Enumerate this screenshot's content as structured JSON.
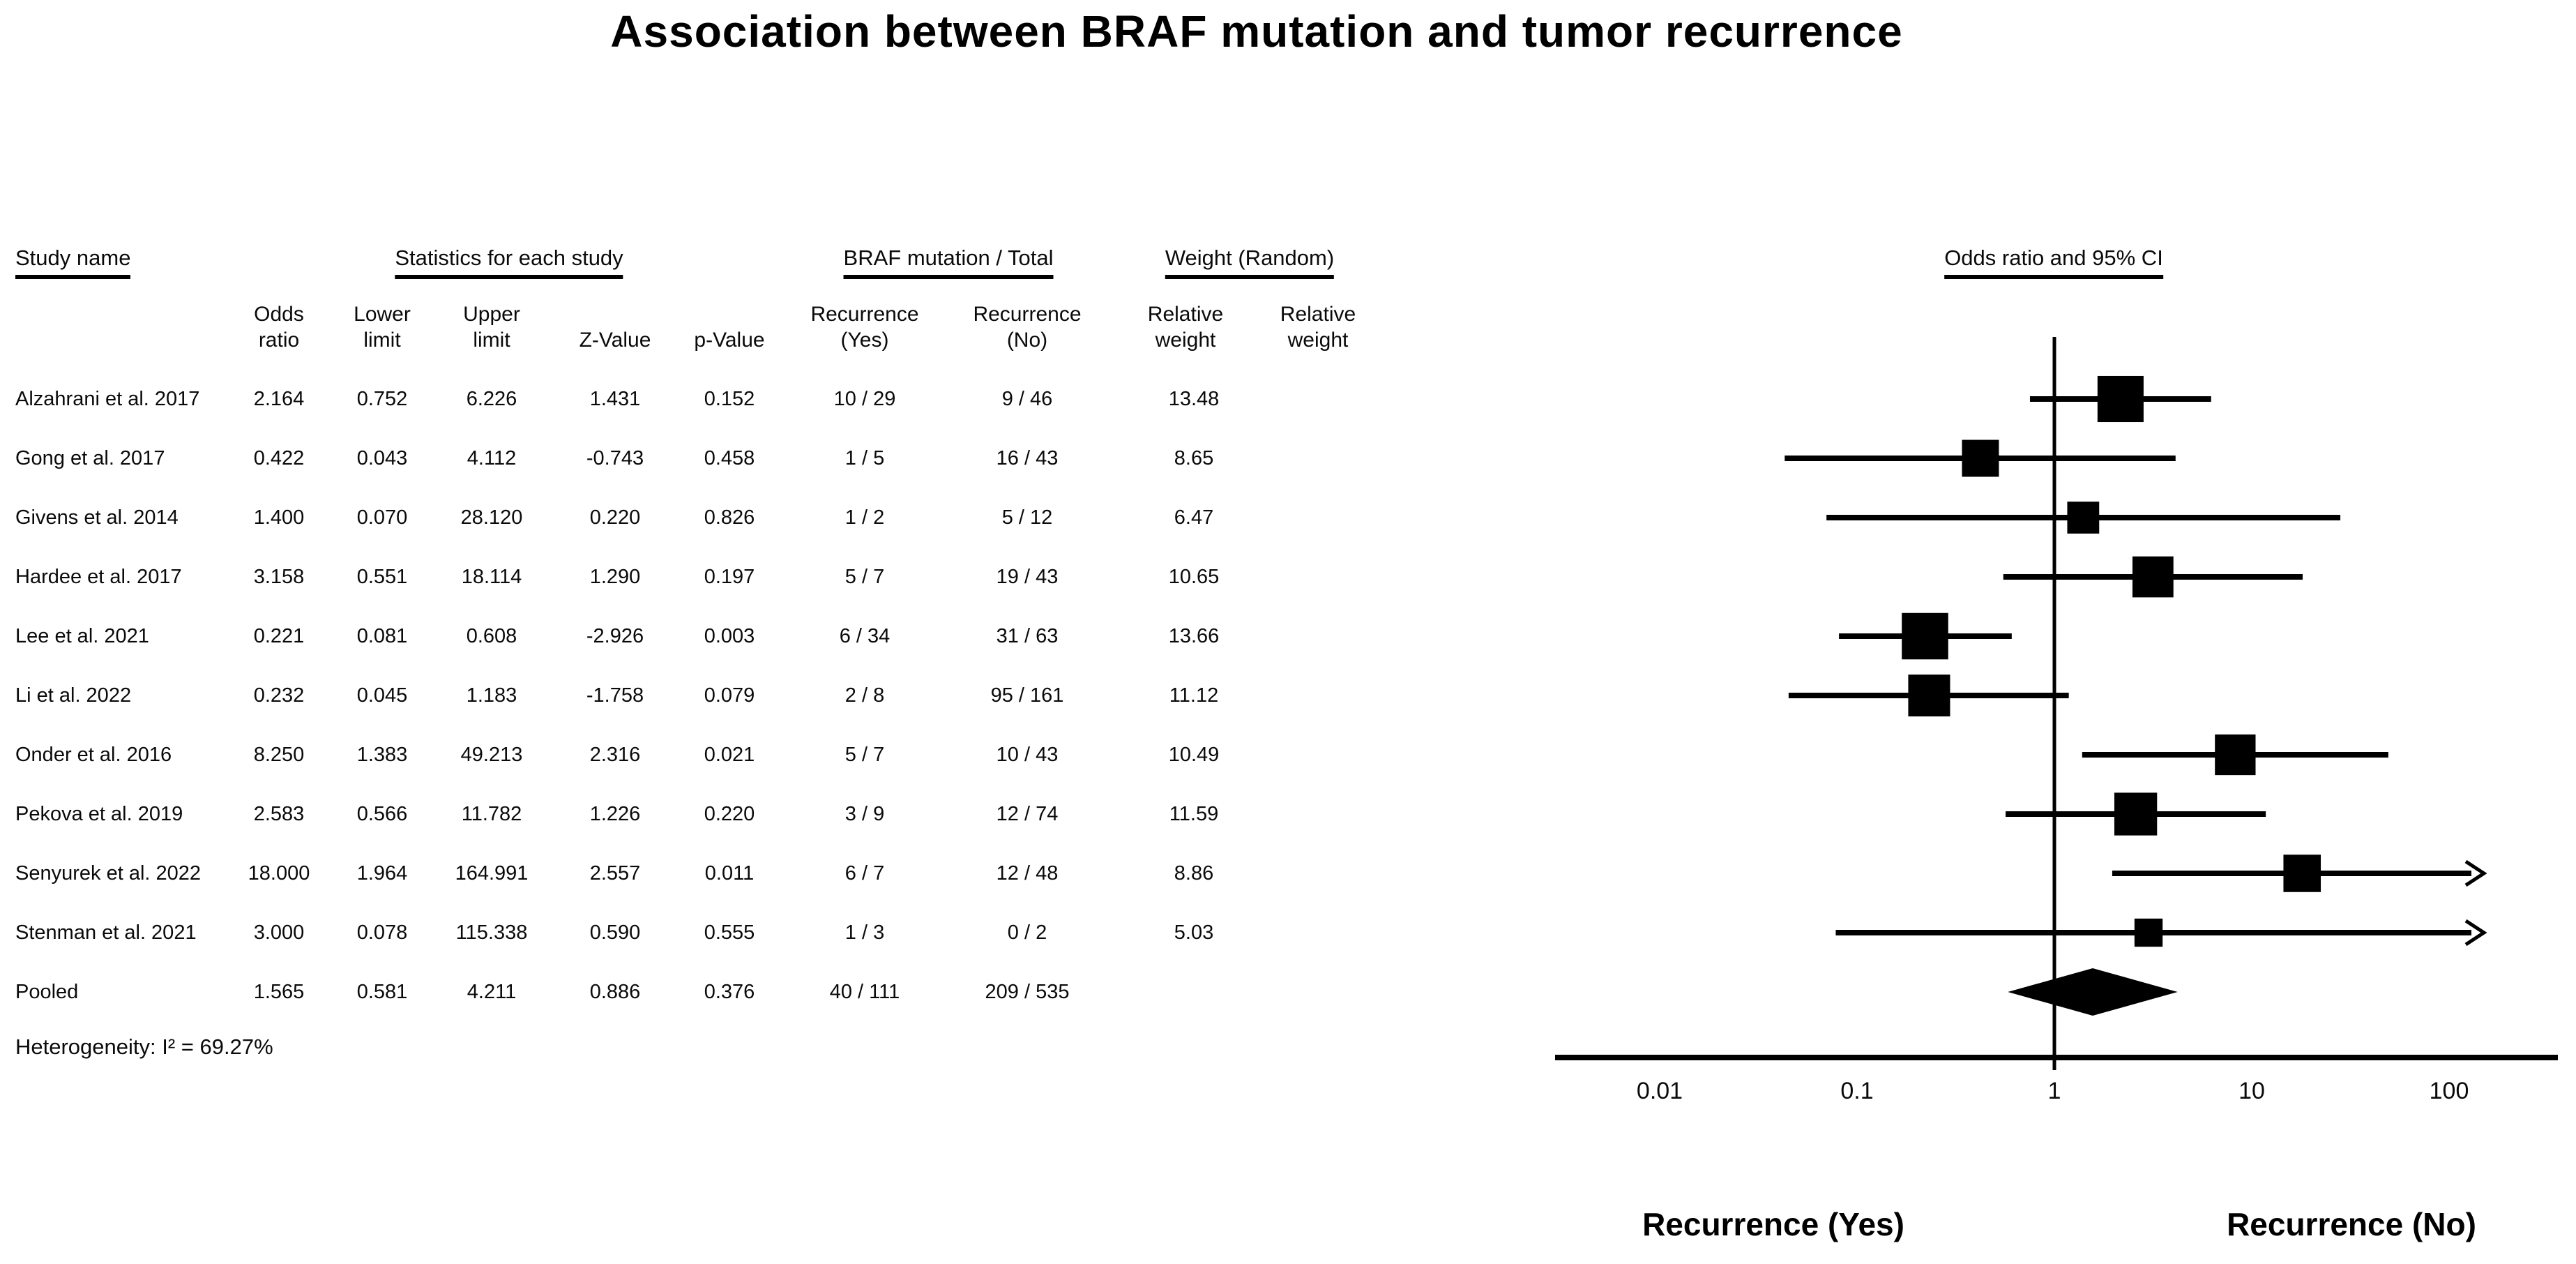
{
  "figure": {
    "title": "Association between BRAF mutation and tumor recurrence",
    "heterogeneity": "Heterogeneity: I² = 69.27%"
  },
  "table": {
    "group_headers": {
      "study": "Study name",
      "stats": "Statistics for each study",
      "braf": "BRAF mutation / Total",
      "weight": "Weight (Random)",
      "plot": "Odds ratio and 95% CI"
    },
    "sub_headers": {
      "odds": "Odds\nratio",
      "lower": "Lower\nlimit",
      "upper": "Upper\nlimit",
      "z": "Z-Value",
      "p": "p-Value",
      "rec_yes": "Recurrence\n(Yes)",
      "rec_no": "Recurrence\n(No)",
      "rel_weight1": "Relative\nweight",
      "rel_weight2": "Relative\nweight"
    },
    "rows": [
      {
        "name": "Alzahrani et al. 2017",
        "or": "2.164",
        "lower": "0.752",
        "upper": "6.226",
        "z": "1.431",
        "p": "0.152",
        "rec_yes": "10 / 29",
        "rec_no": "9 / 46",
        "weight": "13.48"
      },
      {
        "name": "Gong et al. 2017",
        "or": "0.422",
        "lower": "0.043",
        "upper": "4.112",
        "z": "-0.743",
        "p": "0.458",
        "rec_yes": "1 / 5",
        "rec_no": "16 / 43",
        "weight": "8.65"
      },
      {
        "name": "Givens et al. 2014",
        "or": "1.400",
        "lower": "0.070",
        "upper": "28.120",
        "z": "0.220",
        "p": "0.826",
        "rec_yes": "1 / 2",
        "rec_no": "5 / 12",
        "weight": "6.47"
      },
      {
        "name": "Hardee et al. 2017",
        "or": "3.158",
        "lower": "0.551",
        "upper": "18.114",
        "z": "1.290",
        "p": "0.197",
        "rec_yes": "5 / 7",
        "rec_no": "19 / 43",
        "weight": "10.65"
      },
      {
        "name": "Lee et al. 2021",
        "or": "0.221",
        "lower": "0.081",
        "upper": "0.608",
        "z": "-2.926",
        "p": "0.003",
        "rec_yes": "6 / 34",
        "rec_no": "31 / 63",
        "weight": "13.66"
      },
      {
        "name": "Li et al. 2022",
        "or": "0.232",
        "lower": "0.045",
        "upper": "1.183",
        "z": "-1.758",
        "p": "0.079",
        "rec_yes": "2 / 8",
        "rec_no": "95 / 161",
        "weight": "11.12"
      },
      {
        "name": "Onder et al. 2016",
        "or": "8.250",
        "lower": "1.383",
        "upper": "49.213",
        "z": "2.316",
        "p": "0.021",
        "rec_yes": "5 / 7",
        "rec_no": "10 / 43",
        "weight": "10.49"
      },
      {
        "name": "Pekova et al. 2019",
        "or": "2.583",
        "lower": "0.566",
        "upper": "11.782",
        "z": "1.226",
        "p": "0.220",
        "rec_yes": "3 / 9",
        "rec_no": "12 / 74",
        "weight": "11.59"
      },
      {
        "name": "Senyurek et al. 2022",
        "or": "18.000",
        "lower": "1.964",
        "upper": "164.991",
        "z": "2.557",
        "p": "0.011",
        "rec_yes": "6 / 7",
        "rec_no": "12 / 48",
        "weight": "8.86"
      },
      {
        "name": "Stenman et al. 2021",
        "or": "3.000",
        "lower": "0.078",
        "upper": "115.338",
        "z": "0.590",
        "p": "0.555",
        "rec_yes": "1 / 3",
        "rec_no": "0 / 2",
        "weight": "5.03"
      }
    ],
    "pooled_row": {
      "name": "Pooled",
      "or": "1.565",
      "lower": "0.581",
      "upper": "4.211",
      "z": "0.886",
      "p": "0.376",
      "rec_yes": "40 / 111",
      "rec_no": "209 / 535",
      "weight": ""
    }
  },
  "axis": {
    "tick_labels": [
      "0.01",
      "0.1",
      "1",
      "10",
      "100"
    ]
  },
  "footer": {
    "left_label": "Recurrence (Yes)",
    "right_label": "Recurrence (No)"
  },
  "chart_data": {
    "type": "scatter",
    "subtype": "forest_plot_odds_ratio",
    "title": "Association between BRAF mutation and tumor recurrence",
    "x_scale": "log10",
    "x_ticks": [
      0.01,
      0.1,
      1,
      10,
      100
    ],
    "xlim": [
      0.01,
      100
    ],
    "x_axis_header": "Odds ratio and 95% CI",
    "reference_line": 1,
    "legend_position": "none",
    "grid": false,
    "direction_labels": {
      "left": "Recurrence (Yes)",
      "right": "Recurrence (No)"
    },
    "points": [
      {
        "study": "Alzahrani et al. 2017",
        "or": 2.164,
        "ci": [
          0.752,
          6.226
        ],
        "weight_pct": 13.48,
        "arrow_right": false
      },
      {
        "study": "Gong et al. 2017",
        "or": 0.422,
        "ci": [
          0.043,
          4.112
        ],
        "weight_pct": 8.65,
        "arrow_right": false
      },
      {
        "study": "Givens et al. 2014",
        "or": 1.4,
        "ci": [
          0.07,
          28.12
        ],
        "weight_pct": 6.47,
        "arrow_right": false
      },
      {
        "study": "Hardee et al. 2017",
        "or": 3.158,
        "ci": [
          0.551,
          18.114
        ],
        "weight_pct": 10.65,
        "arrow_right": false
      },
      {
        "study": "Lee et al. 2021",
        "or": 0.221,
        "ci": [
          0.081,
          0.608
        ],
        "weight_pct": 13.66,
        "arrow_right": false
      },
      {
        "study": "Li et al. 2022",
        "or": 0.232,
        "ci": [
          0.045,
          1.183
        ],
        "weight_pct": 11.12,
        "arrow_right": false
      },
      {
        "study": "Onder et al. 2016",
        "or": 8.25,
        "ci": [
          1.383,
          49.213
        ],
        "weight_pct": 10.49,
        "arrow_right": false
      },
      {
        "study": "Pekova et al. 2019",
        "or": 2.583,
        "ci": [
          0.566,
          11.782
        ],
        "weight_pct": 11.59,
        "arrow_right": false
      },
      {
        "study": "Senyurek et al. 2022",
        "or": 18.0,
        "ci": [
          1.964,
          164.991
        ],
        "weight_pct": 8.86,
        "arrow_right": true
      },
      {
        "study": "Stenman et al. 2021",
        "or": 3.0,
        "ci": [
          0.078,
          115.338
        ],
        "weight_pct": 5.03,
        "arrow_right": true
      }
    ],
    "pooled": {
      "or": 1.565,
      "ci": [
        0.581,
        4.211
      ]
    },
    "heterogeneity_I2_pct": 69.27
  }
}
